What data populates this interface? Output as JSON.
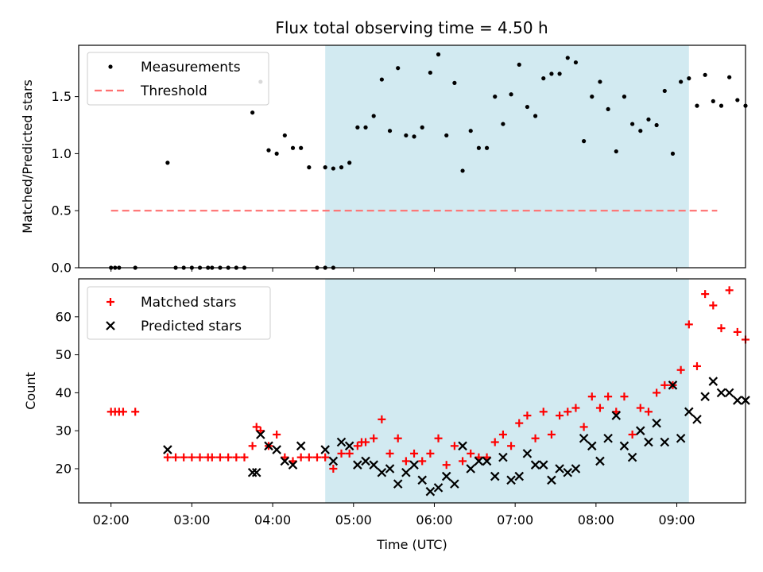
{
  "title": "Flux total observing time = 4.50 h",
  "colors": {
    "shade": "#add8e6",
    "threshold": "#ff7070",
    "measurements": "#000000",
    "matched": "#ff0000",
    "predicted": "#000000"
  },
  "chart_data": [
    {
      "type": "scatter",
      "ylabel": "Matched/Predicted stars",
      "xlim": [
        "01:36",
        "09:51"
      ],
      "ylim": [
        0,
        1.95
      ],
      "yticks": [
        "0.0",
        "0.5",
        "1.0",
        "1.5"
      ],
      "grid": false,
      "legend": {
        "position": "top-left",
        "entries": [
          "Measurements",
          "Threshold"
        ]
      },
      "shaded_span": [
        "04:39",
        "09:09"
      ],
      "threshold": {
        "name": "Threshold",
        "value": 0.5,
        "x": [
          "02:00",
          "09:30"
        ],
        "style": "dashed"
      },
      "series": [
        {
          "name": "Measurements",
          "points": [
            [
              "02:00",
              0
            ],
            [
              "02:03",
              0
            ],
            [
              "02:06",
              0
            ],
            [
              "02:18",
              0
            ],
            [
              "02:42",
              0.92
            ],
            [
              "02:48",
              0
            ],
            [
              "02:54",
              0
            ],
            [
              "03:00",
              0
            ],
            [
              "03:06",
              0
            ],
            [
              "03:12",
              0
            ],
            [
              "03:15",
              0
            ],
            [
              "03:21",
              0
            ],
            [
              "03:27",
              0
            ],
            [
              "03:33",
              0
            ],
            [
              "03:39",
              0
            ],
            [
              "03:45",
              1.36
            ],
            [
              "03:51",
              1.63
            ],
            [
              "03:57",
              1.03
            ],
            [
              "04:03",
              1.0
            ],
            [
              "04:09",
              1.16
            ],
            [
              "04:15",
              1.05
            ],
            [
              "04:21",
              1.05
            ],
            [
              "04:27",
              0.88
            ],
            [
              "04:33",
              0
            ],
            [
              "04:39",
              0
            ],
            [
              "04:45",
              0
            ],
            [
              "04:39",
              0.88
            ],
            [
              "04:45",
              0.87
            ],
            [
              "04:51",
              0.88
            ],
            [
              "04:57",
              0.92
            ],
            [
              "05:03",
              1.23
            ],
            [
              "05:09",
              1.23
            ],
            [
              "05:15",
              1.33
            ],
            [
              "05:21",
              1.65
            ],
            [
              "05:27",
              1.2
            ],
            [
              "05:33",
              1.75
            ],
            [
              "05:39",
              1.16
            ],
            [
              "05:45",
              1.15
            ],
            [
              "05:51",
              1.23
            ],
            [
              "05:57",
              1.71
            ],
            [
              "06:03",
              1.87
            ],
            [
              "06:09",
              1.16
            ],
            [
              "06:15",
              1.62
            ],
            [
              "06:21",
              0.85
            ],
            [
              "06:27",
              1.2
            ],
            [
              "06:33",
              1.05
            ],
            [
              "06:39",
              1.05
            ],
            [
              "06:45",
              1.5
            ],
            [
              "06:51",
              1.26
            ],
            [
              "06:57",
              1.52
            ],
            [
              "07:03",
              1.78
            ],
            [
              "07:09",
              1.41
            ],
            [
              "07:15",
              1.33
            ],
            [
              "07:21",
              1.66
            ],
            [
              "07:27",
              1.7
            ],
            [
              "07:33",
              1.7
            ],
            [
              "07:39",
              1.84
            ],
            [
              "07:45",
              1.8
            ],
            [
              "07:51",
              1.11
            ],
            [
              "07:57",
              1.5
            ],
            [
              "08:03",
              1.63
            ],
            [
              "08:09",
              1.39
            ],
            [
              "08:15",
              1.02
            ],
            [
              "08:21",
              1.5
            ],
            [
              "08:27",
              1.26
            ],
            [
              "08:33",
              1.2
            ],
            [
              "08:39",
              1.3
            ],
            [
              "08:45",
              1.25
            ],
            [
              "08:51",
              1.55
            ],
            [
              "08:57",
              1.0
            ],
            [
              "09:03",
              1.63
            ],
            [
              "09:09",
              1.66
            ],
            [
              "09:15",
              1.42
            ],
            [
              "09:21",
              1.69
            ],
            [
              "09:27",
              1.46
            ],
            [
              "09:33",
              1.42
            ],
            [
              "09:39",
              1.67
            ],
            [
              "09:45",
              1.47
            ],
            [
              "09:51",
              1.42
            ]
          ]
        }
      ]
    },
    {
      "type": "scatter",
      "xlabel": "Time (UTC)",
      "ylabel": "Count",
      "xlim": [
        "01:36",
        "09:51"
      ],
      "ylim": [
        11,
        70
      ],
      "yticks": [
        "20",
        "30",
        "40",
        "50",
        "60"
      ],
      "xticks": [
        "02:00",
        "03:00",
        "04:00",
        "05:00",
        "06:00",
        "07:00",
        "08:00",
        "09:00"
      ],
      "grid": false,
      "legend": {
        "position": "top-left",
        "entries": [
          "Matched stars",
          "Predicted stars"
        ]
      },
      "shaded_span": [
        "04:39",
        "09:09"
      ],
      "series": [
        {
          "name": "Matched stars",
          "marker": "plus",
          "points": [
            [
              "02:00",
              35
            ],
            [
              "02:03",
              35
            ],
            [
              "02:06",
              35
            ],
            [
              "02:09",
              35
            ],
            [
              "02:18",
              35
            ],
            [
              "02:42",
              23
            ],
            [
              "02:48",
              23
            ],
            [
              "02:54",
              23
            ],
            [
              "03:00",
              23
            ],
            [
              "03:06",
              23
            ],
            [
              "03:12",
              23
            ],
            [
              "03:15",
              23
            ],
            [
              "03:21",
              23
            ],
            [
              "03:27",
              23
            ],
            [
              "03:33",
              23
            ],
            [
              "03:39",
              23
            ],
            [
              "03:45",
              26
            ],
            [
              "03:48",
              31
            ],
            [
              "03:51",
              30
            ],
            [
              "03:57",
              26
            ],
            [
              "04:03",
              29
            ],
            [
              "04:09",
              23
            ],
            [
              "04:15",
              22
            ],
            [
              "04:21",
              23
            ],
            [
              "04:27",
              23
            ],
            [
              "04:33",
              23
            ],
            [
              "04:39",
              23
            ],
            [
              "04:45",
              20
            ],
            [
              "04:51",
              24
            ],
            [
              "04:57",
              24
            ],
            [
              "05:03",
              26
            ],
            [
              "05:06",
              27
            ],
            [
              "05:09",
              27
            ],
            [
              "05:15",
              28
            ],
            [
              "05:21",
              33
            ],
            [
              "05:27",
              24
            ],
            [
              "05:33",
              28
            ],
            [
              "05:39",
              22
            ],
            [
              "05:45",
              24
            ],
            [
              "05:51",
              22
            ],
            [
              "05:57",
              24
            ],
            [
              "06:03",
              28
            ],
            [
              "06:09",
              21
            ],
            [
              "06:15",
              26
            ],
            [
              "06:21",
              22
            ],
            [
              "06:27",
              24
            ],
            [
              "06:33",
              23
            ],
            [
              "06:39",
              23
            ],
            [
              "06:45",
              27
            ],
            [
              "06:51",
              29
            ],
            [
              "06:57",
              26
            ],
            [
              "07:03",
              32
            ],
            [
              "07:09",
              34
            ],
            [
              "07:15",
              28
            ],
            [
              "07:21",
              35
            ],
            [
              "07:27",
              29
            ],
            [
              "07:33",
              34
            ],
            [
              "07:39",
              35
            ],
            [
              "07:45",
              36
            ],
            [
              "07:51",
              31
            ],
            [
              "07:57",
              39
            ],
            [
              "08:03",
              36
            ],
            [
              "08:09",
              39
            ],
            [
              "08:15",
              35
            ],
            [
              "08:21",
              39
            ],
            [
              "08:27",
              29
            ],
            [
              "08:33",
              36
            ],
            [
              "08:39",
              35
            ],
            [
              "08:45",
              40
            ],
            [
              "08:51",
              42
            ],
            [
              "08:57",
              42
            ],
            [
              "09:03",
              46
            ],
            [
              "09:09",
              58
            ],
            [
              "09:15",
              47
            ],
            [
              "09:21",
              66
            ],
            [
              "09:27",
              63
            ],
            [
              "09:33",
              57
            ],
            [
              "09:39",
              67
            ],
            [
              "09:45",
              56
            ],
            [
              "09:51",
              54
            ]
          ]
        },
        {
          "name": "Predicted stars",
          "marker": "x",
          "points": [
            [
              "02:42",
              25
            ],
            [
              "03:45",
              19
            ],
            [
              "03:48",
              19
            ],
            [
              "03:51",
              29
            ],
            [
              "03:57",
              26
            ],
            [
              "04:03",
              25
            ],
            [
              "04:09",
              22
            ],
            [
              "04:15",
              21
            ],
            [
              "04:21",
              26
            ],
            [
              "04:39",
              25
            ],
            [
              "04:45",
              22
            ],
            [
              "04:51",
              27
            ],
            [
              "04:57",
              26
            ],
            [
              "05:03",
              21
            ],
            [
              "05:09",
              22
            ],
            [
              "05:15",
              21
            ],
            [
              "05:21",
              19
            ],
            [
              "05:27",
              20
            ],
            [
              "05:33",
              16
            ],
            [
              "05:39",
              19
            ],
            [
              "05:45",
              21
            ],
            [
              "05:51",
              17
            ],
            [
              "05:57",
              14
            ],
            [
              "06:03",
              15
            ],
            [
              "06:09",
              18
            ],
            [
              "06:15",
              16
            ],
            [
              "06:21",
              26
            ],
            [
              "06:27",
              20
            ],
            [
              "06:33",
              22
            ],
            [
              "06:39",
              22
            ],
            [
              "06:45",
              18
            ],
            [
              "06:51",
              23
            ],
            [
              "06:57",
              17
            ],
            [
              "07:03",
              18
            ],
            [
              "07:09",
              24
            ],
            [
              "07:15",
              21
            ],
            [
              "07:21",
              21
            ],
            [
              "07:27",
              17
            ],
            [
              "07:33",
              20
            ],
            [
              "07:39",
              19
            ],
            [
              "07:45",
              20
            ],
            [
              "07:51",
              28
            ],
            [
              "07:57",
              26
            ],
            [
              "08:03",
              22
            ],
            [
              "08:09",
              28
            ],
            [
              "08:15",
              34
            ],
            [
              "08:21",
              26
            ],
            [
              "08:27",
              23
            ],
            [
              "08:33",
              30
            ],
            [
              "08:39",
              27
            ],
            [
              "08:45",
              32
            ],
            [
              "08:51",
              27
            ],
            [
              "08:57",
              42
            ],
            [
              "09:03",
              28
            ],
            [
              "09:09",
              35
            ],
            [
              "09:15",
              33
            ],
            [
              "09:21",
              39
            ],
            [
              "09:27",
              43
            ],
            [
              "09:33",
              40
            ],
            [
              "09:39",
              40
            ],
            [
              "09:45",
              38
            ],
            [
              "09:51",
              38
            ]
          ]
        }
      ]
    }
  ]
}
